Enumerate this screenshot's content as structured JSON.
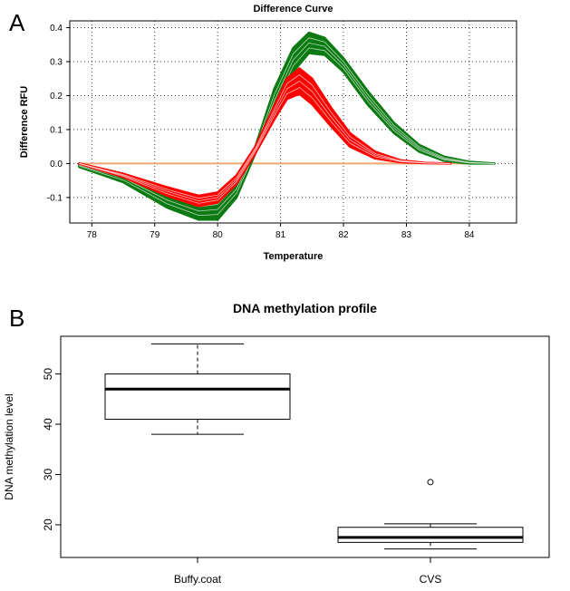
{
  "panels": {
    "a_letter": "A",
    "b_letter": "B"
  },
  "chart_data": [
    {
      "type": "line",
      "title": "Difference Curve",
      "xlabel": "Temperature",
      "ylabel": "Difference RFU",
      "xlim": [
        77.65,
        84.75
      ],
      "ylim": [
        -0.175,
        0.42
      ],
      "x_ticks": [
        "78",
        "79",
        "80",
        "81",
        "82",
        "83",
        "84"
      ],
      "y_ticks": [
        "-0.1",
        "0.0",
        "0.1",
        "0.2",
        "0.3",
        "0.4"
      ],
      "grid": true,
      "grid_style": "dotted",
      "colors": {
        "green": "#0b7a12",
        "red": "#ff0000",
        "baseline": "#f0a878",
        "white": "#ffffff"
      },
      "series": [
        {
          "color_key": "baseline",
          "x": [
            77.8,
            84.4
          ],
          "y": [
            0.0,
            0.0
          ]
        },
        {
          "color_key": "green",
          "band": "upper",
          "x": [
            77.8,
            78.5,
            79.2,
            79.7,
            80.0,
            80.3,
            80.6,
            80.9,
            81.2,
            81.45,
            81.7,
            82.0,
            82.4,
            82.8,
            83.2,
            83.6,
            84.0,
            84.4
          ],
          "y": [
            0.0,
            -0.03,
            -0.085,
            -0.115,
            -0.105,
            -0.05,
            0.05,
            0.22,
            0.34,
            0.385,
            0.37,
            0.31,
            0.21,
            0.12,
            0.055,
            0.02,
            0.005,
            0.0
          ]
        },
        {
          "color_key": "green",
          "band": "lower",
          "x": [
            77.8,
            78.5,
            79.2,
            79.7,
            80.0,
            80.3,
            80.6,
            80.9,
            81.2,
            81.45,
            81.7,
            82.0,
            82.4,
            82.8,
            83.2,
            83.6,
            84.0,
            84.4
          ],
          "y": [
            -0.01,
            -0.055,
            -0.13,
            -0.165,
            -0.165,
            -0.1,
            0.03,
            0.15,
            0.27,
            0.325,
            0.32,
            0.27,
            0.17,
            0.09,
            0.035,
            0.008,
            0.0,
            0.0
          ]
        },
        {
          "color_key": "red",
          "band": "upper",
          "x": [
            77.8,
            78.5,
            79.2,
            79.7,
            80.0,
            80.3,
            80.6,
            80.9,
            81.1,
            81.3,
            81.5,
            81.8,
            82.1,
            82.5,
            82.9,
            83.3,
            83.7
          ],
          "y": [
            0.0,
            -0.03,
            -0.07,
            -0.095,
            -0.085,
            -0.035,
            0.05,
            0.17,
            0.25,
            0.28,
            0.25,
            0.165,
            0.09,
            0.035,
            0.01,
            0.002,
            0.0
          ]
        },
        {
          "color_key": "red",
          "band": "lower",
          "x": [
            77.8,
            78.5,
            79.2,
            79.7,
            80.0,
            80.3,
            80.6,
            80.9,
            81.1,
            81.3,
            81.5,
            81.8,
            82.1,
            82.5,
            82.9,
            83.3,
            83.7
          ],
          "y": [
            0.0,
            -0.04,
            -0.095,
            -0.125,
            -0.115,
            -0.06,
            0.03,
            0.13,
            0.19,
            0.205,
            0.175,
            0.11,
            0.05,
            0.015,
            0.004,
            0.001,
            0.0
          ]
        }
      ]
    },
    {
      "type": "box",
      "title": "DNA methylation profile",
      "xlabel": "",
      "ylabel": "DNA methylation level",
      "ylim": [
        13.5,
        57.5
      ],
      "y_ticks": [
        20,
        30,
        40,
        50
      ],
      "grid": false,
      "categories": [
        "Buffy.coat",
        "CVS"
      ],
      "boxes": [
        {
          "whisker_low": 38.0,
          "q1": 41.0,
          "median": 47.0,
          "q3": 50.0,
          "whisker_high": 56.0,
          "outliers": []
        },
        {
          "whisker_low": 15.2,
          "q1": 16.5,
          "median": 17.5,
          "q3": 19.5,
          "whisker_high": 20.2,
          "outliers": [
            28.5
          ]
        }
      ]
    }
  ]
}
